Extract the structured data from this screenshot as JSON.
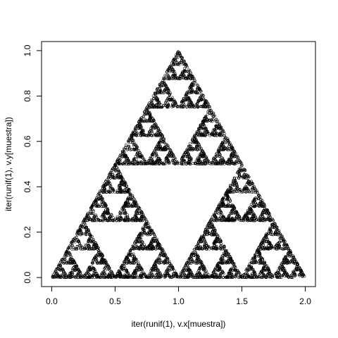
{
  "chart_data": {
    "type": "scatter",
    "title": "",
    "xlabel": "iter(runif(1), v.x[muestra])",
    "ylabel": "iter(runif(1), v.y[muestra])",
    "xlim": [
      -0.08,
      2.08
    ],
    "ylim": [
      -0.04,
      1.04
    ],
    "x_ticks": [
      0.0,
      0.5,
      1.0,
      1.5,
      2.0
    ],
    "x_tick_labels": [
      "0.0",
      "0.5",
      "1.0",
      "1.5",
      "2.0"
    ],
    "y_ticks": [
      0.0,
      0.2,
      0.4,
      0.6,
      0.8,
      1.0
    ],
    "y_tick_labels": [
      "0.0",
      "0.2",
      "0.4",
      "0.6",
      "0.8",
      "1.0"
    ],
    "grid": false,
    "legend": "none",
    "marker": "open-circle",
    "point_color": "#000000",
    "pattern": "sierpinski-triangle",
    "vertices": [
      {
        "x": 0.0,
        "y": 0.0
      },
      {
        "x": 1.0,
        "y": 1.0
      },
      {
        "x": 2.0,
        "y": 0.0
      }
    ]
  }
}
